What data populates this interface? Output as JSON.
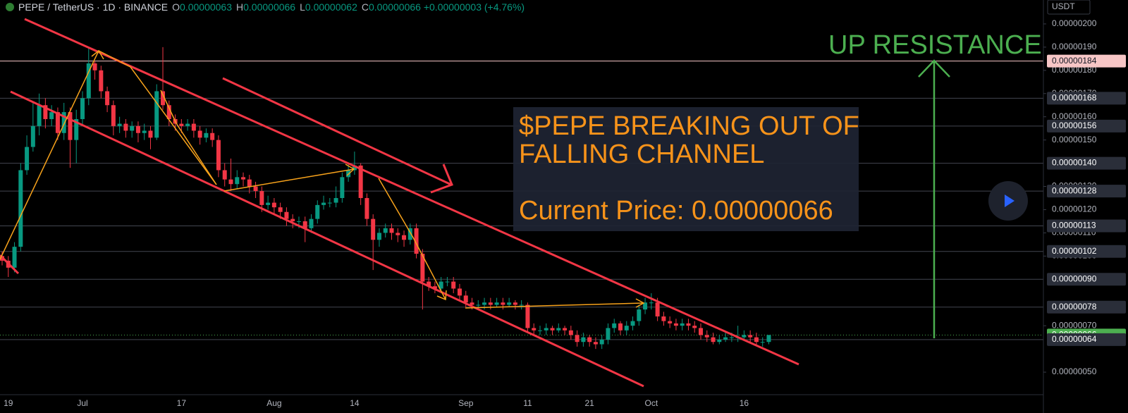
{
  "chart_data": {
    "type": "candlestick",
    "title": "PEPE / TetherUS · 1D · BINANCE",
    "ohlc": [
      {
        "key": "O",
        "value": "0.00000063"
      },
      {
        "key": "H",
        "value": "0.00000066"
      },
      {
        "key": "L",
        "value": "0.00000062"
      },
      {
        "key": "C",
        "value": "0.00000066"
      }
    ],
    "change": "+0.00000003 (+4.76%)",
    "unit": "USDT",
    "up_color": "#089981",
    "down_color": "#f23645",
    "ylim": [
      4.03e-07,
      2.103e-06
    ],
    "yticks": [
      {
        "value": 2e-06,
        "label": "0.00000200"
      },
      {
        "value": 1.9e-06,
        "label": "0.00000190"
      },
      {
        "value": 1.8e-06,
        "label": "0.00000180"
      },
      {
        "value": 1.7e-06,
        "label": "0.00000170"
      },
      {
        "value": 1.6e-06,
        "label": "0.00000160"
      },
      {
        "value": 1.5e-06,
        "label": "0.00000150"
      },
      {
        "value": 1.3e-06,
        "label": "0.00000130"
      },
      {
        "value": 1.2e-06,
        "label": "0.00000120"
      },
      {
        "value": 1.1e-06,
        "label": "0.00000110"
      },
      {
        "value": 1e-06,
        "label": "0.00000100"
      },
      {
        "value": 7e-07,
        "label": "0.00000070"
      },
      {
        "value": 5e-07,
        "label": "0.00000050"
      }
    ],
    "levels": [
      {
        "value": 1.84e-06,
        "label": "0.00000184",
        "color": "#f7c6c6"
      },
      {
        "value": 1.68e-06,
        "label": "0.00000168",
        "color": "#2a2e39"
      },
      {
        "value": 1.56e-06,
        "label": "0.00000156",
        "color": "#2a2e39"
      },
      {
        "value": 1.4e-06,
        "label": "0.00000140",
        "color": "#2a2e39"
      },
      {
        "value": 1.28e-06,
        "label": "0.00000128",
        "color": "#2a2e39"
      },
      {
        "value": 1.13e-06,
        "label": "0.00000113",
        "color": "#2a2e39"
      },
      {
        "value": 1.02e-06,
        "label": "0.00000102",
        "color": "#2a2e39"
      },
      {
        "value": 9e-07,
        "label": "0.00000090",
        "color": "#2a2e39"
      },
      {
        "value": 7.8e-07,
        "label": "0.00000078",
        "color": "#2a2e39"
      },
      {
        "value": 6.6e-07,
        "label": "0.00000066",
        "color": "#4caf50"
      },
      {
        "value": 6.4e-07,
        "label": "0.00000064",
        "color": "#2a2e39"
      }
    ],
    "annotations": {
      "box_title": [
        "$PEPE BREAKING OUT OF",
        "FALLING CHANNEL"
      ],
      "box_price": "Current Price: 0.00000066",
      "target": "UP RESISTANCES"
    },
    "categories": [
      null,
      "19",
      null,
      null,
      null,
      null,
      null,
      null,
      null,
      null,
      null,
      null,
      null,
      "Jul",
      null,
      null,
      null,
      null,
      null,
      null,
      null,
      null,
      null,
      null,
      null,
      null,
      null,
      null,
      null,
      "17",
      null,
      null,
      null,
      null,
      null,
      null,
      null,
      null,
      null,
      null,
      null,
      null,
      null,
      null,
      "Aug",
      null,
      null,
      null,
      null,
      null,
      null,
      null,
      null,
      null,
      null,
      null,
      null,
      "14",
      null,
      null,
      null,
      null,
      null,
      null,
      null,
      null,
      null,
      null,
      null,
      null,
      null,
      null,
      null,
      null,
      null,
      "Sep",
      null,
      null,
      null,
      null,
      null,
      null,
      null,
      null,
      null,
      "11",
      null,
      null,
      null,
      null,
      null,
      null,
      null,
      null,
      null,
      "21",
      null,
      null,
      null,
      null,
      null,
      null,
      null,
      null,
      null,
      "Oct",
      null,
      null,
      null,
      null,
      null,
      null,
      null,
      null,
      null,
      null,
      null,
      null,
      null,
      null,
      "16",
      null,
      null,
      null,
      null
    ],
    "open": [
      1e-06,
      9.8e-07,
      9.5e-07,
      1.04e-06,
      1.37e-06,
      1.47e-06,
      1.56e-06,
      1.65e-06,
      1.59e-06,
      1.62e-06,
      1.53e-06,
      1.62e-06,
      1.5e-06,
      1.59e-06,
      1.68e-06,
      1.83e-06,
      1.8e-06,
      1.71e-06,
      1.65e-06,
      1.56e-06,
      1.57e-06,
      1.54e-06,
      1.56e-06,
      1.53e-06,
      1.54e-06,
      1.51e-06,
      1.71e-06,
      1.65e-06,
      1.59e-06,
      1.57e-06,
      1.56e-06,
      1.57e-06,
      1.54e-06,
      1.51e-06,
      1.53e-06,
      1.5e-06,
      1.37e-06,
      1.33e-06,
      1.31e-06,
      1.34e-06,
      1.33e-06,
      1.3e-06,
      1.28e-06,
      1.22e-06,
      1.23e-06,
      1.21e-06,
      1.19e-06,
      1.16e-06,
      1.15e-06,
      1.15e-06,
      1.12e-06,
      1.16e-06,
      1.22e-06,
      1.23e-06,
      1.23e-06,
      1.25e-06,
      1.34e-06,
      1.37e-06,
      1.39e-06,
      1.25e-06,
      1.16e-06,
      1.07e-06,
      1.1e-06,
      1.12e-06,
      1.1e-06,
      1.09e-06,
      1.07e-06,
      1.12e-06,
      1.01e-06,
      8.9e-07,
      8.7e-07,
      8.6e-07,
      8.9e-07,
      8.9e-07,
      8.6e-07,
      8.3e-07,
      8e-07,
      7.9e-07,
      7.9e-07,
      8e-07,
      7.9e-07,
      8e-07,
      7.9e-07,
      8e-07,
      7.9e-07,
      7.9e-07,
      6.9e-07,
      6.8e-07,
      6.8e-07,
      6.9e-07,
      6.8e-07,
      6.9e-07,
      6.8e-07,
      6.6e-07,
      6.3e-07,
      6.5e-07,
      6.3e-07,
      6.2e-07,
      6.4e-07,
      6.9e-07,
      7.1e-07,
      6.8e-07,
      7e-07,
      7.2e-07,
      7.7e-07,
      8e-07,
      8e-07,
      7.4e-07,
      7.2e-07,
      7.1e-07,
      7e-07,
      7.1e-07,
      7e-07,
      6.9e-07,
      6.6e-07,
      6.5e-07,
      6.3e-07,
      6.4e-07,
      6.5e-07,
      6.5e-07,
      6.5e-07,
      6.6e-07,
      6.5e-07,
      6.3e-07,
      6.3e-07
    ],
    "high": [
      1.02e-06,
      1e-06,
      1.06e-06,
      1.4e-06,
      1.52e-06,
      1.66e-06,
      1.7e-06,
      1.68e-06,
      1.65e-06,
      1.64e-06,
      1.66e-06,
      1.64e-06,
      1.63e-06,
      1.71e-06,
      1.9e-06,
      1.84e-06,
      1.82e-06,
      1.73e-06,
      1.67e-06,
      1.6e-06,
      1.59e-06,
      1.58e-06,
      1.58e-06,
      1.57e-06,
      1.56e-06,
      1.74e-06,
      1.9e-06,
      1.67e-06,
      1.61e-06,
      1.59e-06,
      1.59e-06,
      1.59e-06,
      1.56e-06,
      1.55e-06,
      1.55e-06,
      1.52e-06,
      1.4e-06,
      1.42e-06,
      1.37e-06,
      1.36e-06,
      1.35e-06,
      1.32e-06,
      1.3e-06,
      1.26e-06,
      1.25e-06,
      1.23e-06,
      1.21e-06,
      1.18e-06,
      1.17e-06,
      1.17e-06,
      1.18e-06,
      1.24e-06,
      1.26e-06,
      1.25e-06,
      1.3e-06,
      1.36e-06,
      1.4e-06,
      1.45e-06,
      1.4e-06,
      1.27e-06,
      1.18e-06,
      1.12e-06,
      1.14e-06,
      1.14e-06,
      1.12e-06,
      1.11e-06,
      1.14e-06,
      1.14e-06,
      1.03e-06,
      9.1e-07,
      8.9e-07,
      9.1e-07,
      9.1e-07,
      9.1e-07,
      8.8e-07,
      8.5e-07,
      8.2e-07,
      8.1e-07,
      8.2e-07,
      8.2e-07,
      8.2e-07,
      8.2e-07,
      8.2e-07,
      8.1e-07,
      8.1e-07,
      8e-07,
      7.1e-07,
      7e-07,
      7.1e-07,
      7e-07,
      7.1e-07,
      7e-07,
      7e-07,
      6.8e-07,
      6.7e-07,
      6.6e-07,
      6.5e-07,
      6.6e-07,
      7.1e-07,
      7.3e-07,
      7.2e-07,
      7.2e-07,
      7.4e-07,
      7.9e-07,
      8.2e-07,
      8.4e-07,
      8.2e-07,
      7.6e-07,
      7.4e-07,
      7.3e-07,
      7.3e-07,
      7.3e-07,
      7.2e-07,
      7.1e-07,
      6.8e-07,
      6.7e-07,
      6.6e-07,
      6.7e-07,
      6.7e-07,
      7e-07,
      6.8e-07,
      6.8e-07,
      6.7e-07,
      6.5e-07,
      6.6e-07
    ],
    "low": [
      9.6e-07,
      9.1e-07,
      9.3e-07,
      1.02e-06,
      1.35e-06,
      1.45e-06,
      1.52e-06,
      1.55e-06,
      1.56e-06,
      1.5e-06,
      1.5e-06,
      1.38e-06,
      1.4e-06,
      1.56e-06,
      1.65e-06,
      1.76e-06,
      1.68e-06,
      1.62e-06,
      1.52e-06,
      1.53e-06,
      1.51e-06,
      1.51e-06,
      1.49e-06,
      1.5e-06,
      1.46e-06,
      1.5e-06,
      1.63e-06,
      1.56e-06,
      1.54e-06,
      1.53e-06,
      1.54e-06,
      1.51e-06,
      1.48e-06,
      1.49e-06,
      1.47e-06,
      1.34e-06,
      1.3e-06,
      1.28e-06,
      1.29e-06,
      1.3e-06,
      1.27e-06,
      1.25e-06,
      1.19e-06,
      1.2e-06,
      1.18e-06,
      1.16e-06,
      1.13e-06,
      1.12e-06,
      1.12e-06,
      1.06e-06,
      1.1e-06,
      1.14e-06,
      1.2e-06,
      1.21e-06,
      1.21e-06,
      1.23e-06,
      1.32e-06,
      1.35e-06,
      1.22e-06,
      1.13e-06,
      9.4e-07,
      1.04e-06,
      1.08e-06,
      1.07e-06,
      1.06e-06,
      1.04e-06,
      1.05e-06,
      9.9e-07,
      7.7e-07,
      8.5e-07,
      8.4e-07,
      8.4e-07,
      8.7e-07,
      8.4e-07,
      8.1e-07,
      7.8e-07,
      7.7e-07,
      7.7e-07,
      7.7e-07,
      7.7e-07,
      7.8e-07,
      7.7e-07,
      7.8e-07,
      7.7e-07,
      7.7e-07,
      6.7e-07,
      6.6e-07,
      6.6e-07,
      6.6e-07,
      6.6e-07,
      6.7e-07,
      6.6e-07,
      6.4e-07,
      6.1e-07,
      6.1e-07,
      6.1e-07,
      6e-07,
      6e-07,
      6.2e-07,
      6.7e-07,
      6.6e-07,
      6.6e-07,
      6.8e-07,
      7e-07,
      7.5e-07,
      7.7e-07,
      7.2e-07,
      7e-07,
      6.9e-07,
      6.8e-07,
      6.8e-07,
      6.8e-07,
      6.7e-07,
      6.4e-07,
      6.3e-07,
      6.2e-07,
      6.2e-07,
      6.3e-07,
      6.3e-07,
      6.3e-07,
      6.4e-07,
      6.3e-07,
      6.2e-07,
      6.1e-07,
      6.2e-07
    ],
    "close": [
      9.8e-07,
      9.5e-07,
      1.04e-06,
      1.37e-06,
      1.47e-06,
      1.56e-06,
      1.65e-06,
      1.59e-06,
      1.62e-06,
      1.53e-06,
      1.62e-06,
      1.5e-06,
      1.59e-06,
      1.68e-06,
      1.83e-06,
      1.8e-06,
      1.71e-06,
      1.65e-06,
      1.56e-06,
      1.57e-06,
      1.54e-06,
      1.56e-06,
      1.53e-06,
      1.54e-06,
      1.51e-06,
      1.71e-06,
      1.65e-06,
      1.59e-06,
      1.57e-06,
      1.56e-06,
      1.57e-06,
      1.54e-06,
      1.51e-06,
      1.53e-06,
      1.5e-06,
      1.37e-06,
      1.33e-06,
      1.31e-06,
      1.34e-06,
      1.33e-06,
      1.3e-06,
      1.28e-06,
      1.22e-06,
      1.23e-06,
      1.21e-06,
      1.19e-06,
      1.16e-06,
      1.15e-06,
      1.15e-06,
      1.12e-06,
      1.16e-06,
      1.22e-06,
      1.23e-06,
      1.23e-06,
      1.25e-06,
      1.34e-06,
      1.37e-06,
      1.39e-06,
      1.25e-06,
      1.16e-06,
      1.07e-06,
      1.1e-06,
      1.12e-06,
      1.1e-06,
      1.09e-06,
      1.07e-06,
      1.12e-06,
      1.01e-06,
      8.9e-07,
      8.7e-07,
      8.6e-07,
      8.9e-07,
      8.9e-07,
      8.6e-07,
      8.3e-07,
      8e-07,
      7.9e-07,
      7.9e-07,
      8e-07,
      7.9e-07,
      8e-07,
      7.9e-07,
      8e-07,
      7.9e-07,
      7.9e-07,
      6.9e-07,
      6.8e-07,
      6.8e-07,
      6.9e-07,
      6.8e-07,
      6.9e-07,
      6.8e-07,
      6.6e-07,
      6.3e-07,
      6.5e-07,
      6.3e-07,
      6.2e-07,
      6.4e-07,
      6.9e-07,
      7.1e-07,
      6.8e-07,
      7e-07,
      7.2e-07,
      7.7e-07,
      8e-07,
      8e-07,
      7.4e-07,
      7.2e-07,
      7.1e-07,
      7e-07,
      7.1e-07,
      7e-07,
      6.9e-07,
      6.6e-07,
      6.5e-07,
      6.3e-07,
      6.4e-07,
      6.5e-07,
      6.5e-07,
      6.5e-07,
      6.6e-07,
      6.5e-07,
      6.3e-07,
      6.3e-07,
      6.6e-07
    ]
  }
}
